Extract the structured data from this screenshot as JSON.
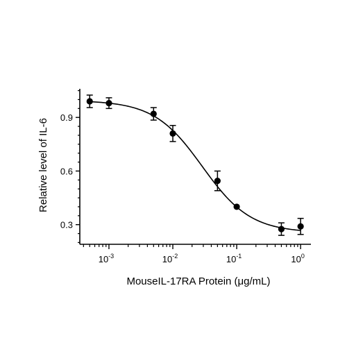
{
  "chart_data": {
    "type": "scatter",
    "xlabel": "MouseIL-17RA Protein (μg/mL)",
    "ylabel": "Relative level of IL-6",
    "x_scale": "log",
    "xlim": [
      0.00035,
      1.45
    ],
    "ylim": [
      0.19,
      1.06
    ],
    "x_ticks": [
      {
        "value": 0.001,
        "base": "10",
        "exp": "-3"
      },
      {
        "value": 0.01,
        "base": "10",
        "exp": "-2"
      },
      {
        "value": 0.1,
        "base": "10",
        "exp": "-1"
      },
      {
        "value": 1,
        "base": "10",
        "exp": "0"
      }
    ],
    "y_ticks": [
      {
        "value": 0.3,
        "label": "0.3"
      },
      {
        "value": 0.6,
        "label": "0.6"
      },
      {
        "value": 0.9,
        "label": "0.9"
      }
    ],
    "series": [
      {
        "color": "#000000",
        "points": [
          {
            "x": 0.0005,
            "y": 0.99,
            "err": 0.035
          },
          {
            "x": 0.001,
            "y": 0.98,
            "err": 0.03
          },
          {
            "x": 0.005,
            "y": 0.92,
            "err": 0.035
          },
          {
            "x": 0.01,
            "y": 0.81,
            "err": 0.045
          },
          {
            "x": 0.05,
            "y": 0.545,
            "err": 0.055
          },
          {
            "x": 0.1,
            "y": 0.4,
            "err": 0.0
          },
          {
            "x": 0.5,
            "y": 0.275,
            "err": 0.035
          },
          {
            "x": 1,
            "y": 0.29,
            "err": 0.045
          }
        ],
        "fit": {
          "model": "4PL",
          "top": 0.995,
          "bottom": 0.255,
          "ec50": 0.029,
          "hill": 1.15
        }
      }
    ],
    "grid": false,
    "legend": "none"
  }
}
